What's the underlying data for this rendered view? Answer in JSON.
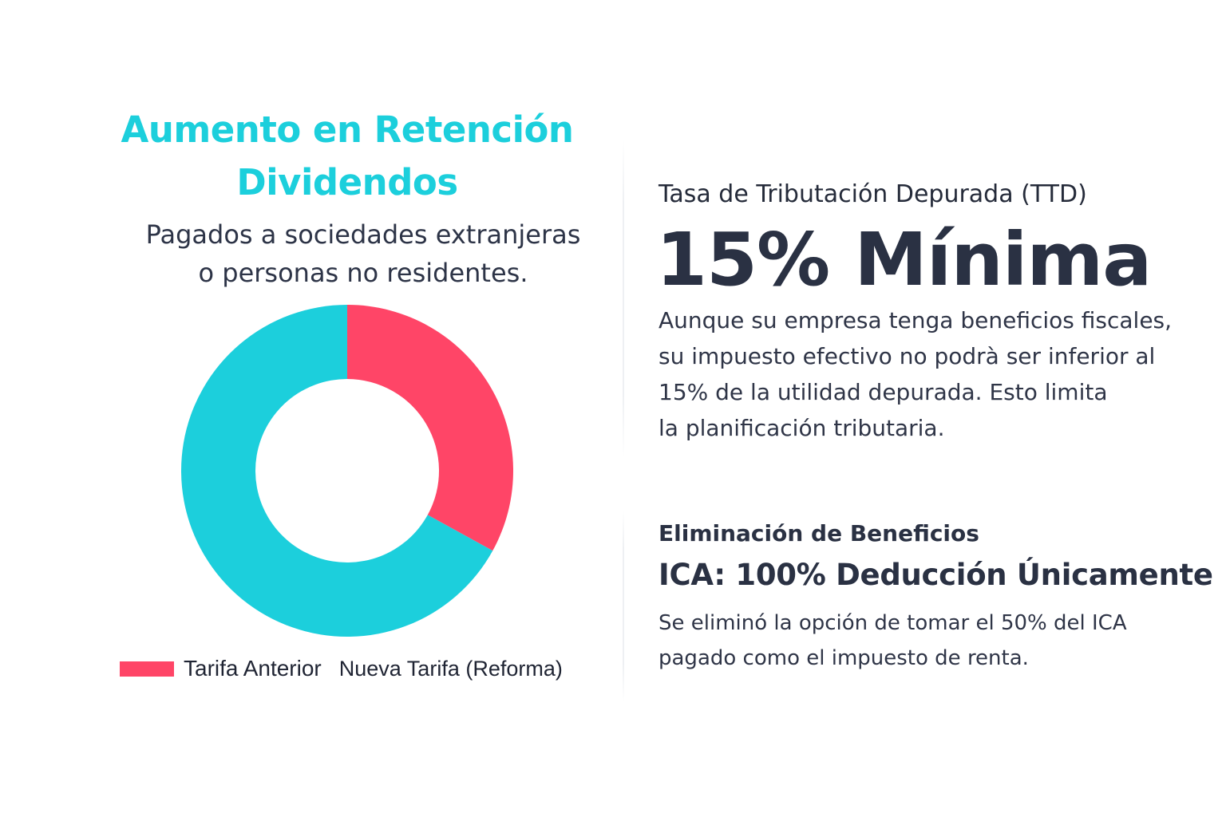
{
  "left_panel": {
    "title_line1": "Aumento en Retención",
    "title_line2": "Dividendos",
    "subtitle_line1": "Pagados a sociedades extranjeras",
    "subtitle_line2": "o personas no residentes."
  },
  "chart_data": {
    "type": "pie",
    "donut": true,
    "title": "Aumento en Retención Dividendos",
    "categories": [
      "Tarifa Anterior",
      "Nueva Tarifa (Reforma)"
    ],
    "values": [
      33,
      67
    ],
    "colors": [
      "#ff4567",
      "#1ccfdc"
    ],
    "legend": {
      "placement": "bottom",
      "entries": [
        {
          "label": "Tarifa Anterior",
          "color": "#ff4567",
          "swatch": true
        },
        {
          "label": "Nueva Tarifa (Reforma)",
          "swatch": false
        }
      ]
    }
  },
  "right_panel": {
    "ttd": {
      "label": "Tasa de Tributación Depurada (TTD)",
      "headline": "15% Mínima",
      "body_lines": [
        "Aunque su empresa tenga beneficios fiscales,",
        "su impuesto efectivo no podrà ser inferior al",
        "15% de la utilidad depurada. Esto limita",
        "la planificación tributaria."
      ]
    },
    "ica": {
      "label": "Eliminación de Beneficios",
      "headline": "ICA: 100% Deducción Únicamente",
      "body_lines": [
        "Se eliminó la opción de tomar el 50% del ICA",
        "pagado como el impuesto de renta."
      ]
    }
  },
  "colors": {
    "accent_teal": "#1ccfdc",
    "accent_red": "#ff4567",
    "text_dark": "#2a3143"
  }
}
